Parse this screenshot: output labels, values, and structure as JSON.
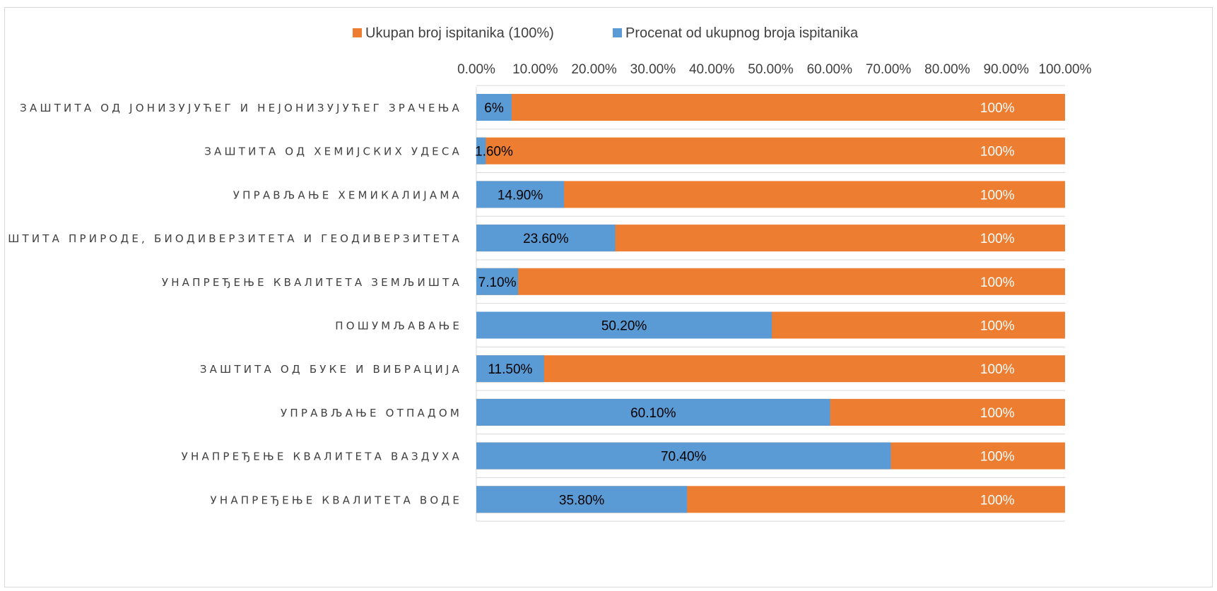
{
  "chart_data": {
    "type": "bar",
    "orientation": "horizontal",
    "title": "",
    "xlabel": "",
    "ylabel": "",
    "xlim": [
      0,
      100
    ],
    "x_ticks": [
      "0.00%",
      "10.00%",
      "20.00%",
      "30.00%",
      "40.00%",
      "50.00%",
      "60.00%",
      "70.00%",
      "80.00%",
      "90.00%",
      "100.00%"
    ],
    "x_axis_position": "top",
    "grid": true,
    "legend_position": "top",
    "categories": [
      "ЗАШТИТА ОД ЈОНИЗУЈУЋЕГ И НЕЈОНИЗУЈУЋЕГ ЗРАЧЕЊА",
      "ЗАШТИТА ОД ХЕМИЈСКИХ УДЕСА",
      "УПРАВЉАЊЕ ХЕМИКАЛИЈАМА",
      "ЗАШТИТА ПРИРОДЕ, БИОДИВЕРЗИТЕТА И ГЕОДИВЕРЗИТЕТА",
      "УНАПРЕЂЕЊЕ КВАЛИТЕТА ЗЕМЉИШТА",
      "ПОШУМЉАВАЊЕ",
      "ЗАШТИТА ОД БУКЕ И ВИБРАЦИЈА",
      "УПРАВЉАЊЕ ОТПАДОМ",
      "УНАПРЕЂЕЊЕ КВАЛИТЕТА ВАЗДУХА",
      "УНАПРЕЂЕЊЕ КВАЛИТЕТА ВОДЕ"
    ],
    "series": [
      {
        "name": "Ukupan broj ispitanika (100%)",
        "color": "#ed7d31",
        "values": [
          100,
          100,
          100,
          100,
          100,
          100,
          100,
          100,
          100,
          100
        ],
        "labels": [
          "100%",
          "100%",
          "100%",
          "100%",
          "100%",
          "100%",
          "100%",
          "100%",
          "100%",
          "100%"
        ]
      },
      {
        "name": "Procenat od ukupnog broja ispitanika",
        "color": "#5b9bd5",
        "values": [
          6,
          1.6,
          14.9,
          23.6,
          7.1,
          50.2,
          11.5,
          60.1,
          70.4,
          35.8
        ],
        "labels": [
          "6%",
          "1.60%",
          "14.90%",
          "23.60%",
          "7.10%",
          "50.20%",
          "11.50%",
          "60.10%",
          "70.40%",
          "35.80%"
        ]
      }
    ]
  }
}
